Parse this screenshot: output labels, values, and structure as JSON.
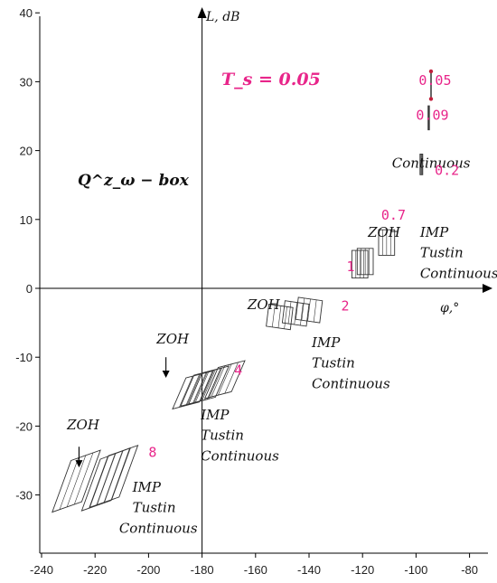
{
  "chart_data": {
    "type": "scatter",
    "title": "",
    "xlabel": "φ,°",
    "ylabel": "L, dB",
    "xlim": [
      -242,
      -75
    ],
    "ylim": [
      -39,
      41
    ],
    "x_ticks": [
      -240,
      -220,
      -200,
      -180,
      -160,
      -140,
      -120,
      -100,
      -80
    ],
    "y_ticks": [
      40,
      30,
      20,
      10,
      0,
      -10,
      -20,
      -30
    ],
    "grid": false,
    "inset_labels": {
      "sampling": "T_s = 0.05",
      "box": "Q^z_ω − box"
    },
    "series": [
      {
        "frequency": "0.05",
        "templates": [
          {
            "phi": [
              -94.5,
              -94.3,
              -94.3,
              -94.5
            ],
            "L": [
              31.5,
              31.5,
              27.5,
              27.5
            ]
          }
        ]
      },
      {
        "frequency": "0.09",
        "templates": [
          {
            "phi": [
              -95.5,
              -95.0,
              -95.0,
              -95.5
            ],
            "L": [
              26.5,
              26.5,
              23.0,
              23.0
            ]
          }
        ]
      },
      {
        "frequency": "0.2",
        "templates": [
          {
            "phi": [
              -98.5,
              -97.5,
              -97.5,
              -98.5
            ],
            "L": [
              19.5,
              19.5,
              16.5,
              16.5
            ]
          }
        ]
      },
      {
        "frequency": "0.7",
        "templates": [
          {
            "phi": [
              -114,
              -108,
              -108,
              -114
            ],
            "L": [
              8.5,
              8.5,
              4.8,
              4.8
            ]
          }
        ]
      },
      {
        "frequency": "1",
        "templates": [
          {
            "phi": [
              -124,
              -118,
              -118,
              -124
            ],
            "L": [
              5.5,
              5.5,
              1.5,
              1.5
            ]
          },
          {
            "phi": [
              -122,
              -116,
              -116,
              -122
            ],
            "L": [
              5.8,
              5.8,
              2.0,
              2.0
            ]
          }
        ]
      },
      {
        "frequency": "2",
        "templates": [
          {
            "phi": [
              -155,
              -146,
              -147,
              -156
            ],
            "L": [
              -2.3,
              -2.8,
              -6.0,
              -5.5
            ]
          },
          {
            "phi": [
              -149,
              -140,
              -141,
              -150
            ],
            "L": [
              -1.8,
              -2.3,
              -5.5,
              -5.0
            ]
          },
          {
            "phi": [
              -144,
              -135,
              -136,
              -145
            ],
            "L": [
              -1.3,
              -1.8,
              -5.0,
              -4.5
            ]
          }
        ]
      },
      {
        "frequency": "4",
        "templates": [
          {
            "phi": [
              -186,
              -176,
              -181,
              -191
            ],
            "L": [
              -13.0,
              -12.0,
              -16.5,
              -17.5
            ]
          },
          {
            "phi": [
              -180,
              -170,
              -175,
              -185
            ],
            "L": [
              -12.3,
              -11.3,
              -15.8,
              -16.8
            ]
          },
          {
            "phi": [
              -174,
              -164,
              -169,
              -179
            ],
            "L": [
              -11.5,
              -10.5,
              -15.0,
              -16.0
            ]
          },
          {
            "phi": [
              -183,
              -173,
              -178,
              -188
            ],
            "L": [
              -12.6,
              -11.6,
              -16.1,
              -17.1
            ]
          }
        ]
      },
      {
        "frequency": "8",
        "templates": [
          {
            "phi": [
              -229,
              -218,
              -225,
              -236
            ],
            "L": [
              -25.0,
              -23.5,
              -31.0,
              -32.5
            ]
          },
          {
            "phi": [
              -218,
              -207,
              -214,
              -225
            ],
            "L": [
              -24.8,
              -23.2,
              -30.8,
              -32.3
            ]
          },
          {
            "phi": [
              -215,
              -204,
              -211,
              -222
            ],
            "L": [
              -24.3,
              -22.8,
              -30.3,
              -31.8
            ]
          }
        ]
      }
    ],
    "annotations": [
      {
        "text": "0.05",
        "phi": -99,
        "L": 29.5
      },
      {
        "text": "0.09",
        "phi": -100,
        "L": 24.5
      },
      {
        "text": "Continuous",
        "phi": -109,
        "L": 17.5
      },
      {
        "text": "0.2",
        "phi": -93,
        "L": 16.5
      },
      {
        "text": "ZOH",
        "phi": -118,
        "L": 7.5
      },
      {
        "text": "0.7",
        "phi": -113,
        "L": 10.0
      },
      {
        "text": "IMP",
        "phi": -98.5,
        "L": 7.5
      },
      {
        "text": "Tustin",
        "phi": -98.5,
        "L": 4.5
      },
      {
        "text": "Continuous",
        "phi": -98.5,
        "L": 1.5
      },
      {
        "text": "1",
        "phi": -126,
        "L": 2.5
      },
      {
        "text": "ZOH",
        "phi": -163,
        "L": -3.0
      },
      {
        "text": "2",
        "phi": -128,
        "L": -3.2
      },
      {
        "text": "IMP",
        "phi": -139,
        "L": -8.5
      },
      {
        "text": "Tustin",
        "phi": -139,
        "L": -11.5
      },
      {
        "text": "Continuous",
        "phi": -139,
        "L": -14.5
      },
      {
        "text": "ZOH",
        "phi": -197,
        "L": -8.0
      },
      {
        "text": "4",
        "phi": -168,
        "L": -12.5
      },
      {
        "text": "IMP",
        "phi": -180.5,
        "L": -19.0
      },
      {
        "text": "Tustin",
        "phi": -180.5,
        "L": -22.0
      },
      {
        "text": "Continuous",
        "phi": -180.5,
        "L": -25.0
      },
      {
        "text": "ZOH",
        "phi": -230.5,
        "L": -20.5
      },
      {
        "text": "8",
        "phi": -200,
        "L": -24.5
      },
      {
        "text": "IMP",
        "phi": -206,
        "L": -29.5
      },
      {
        "text": "Tustin",
        "phi": -206,
        "L": -32.5
      },
      {
        "text": "Continuous",
        "phi": -211,
        "L": -35.5
      }
    ],
    "arrows": [
      {
        "from": [
          -193.5,
          -10.0
        ],
        "to": [
          -193.5,
          -13.0
        ]
      },
      {
        "from": [
          -226.0,
          -23.0
        ],
        "to": [
          -226.0,
          -26.0
        ]
      }
    ],
    "colors": {
      "frequency_labels": "#e8258a",
      "templates": "#333333",
      "axes": "#000000"
    }
  }
}
